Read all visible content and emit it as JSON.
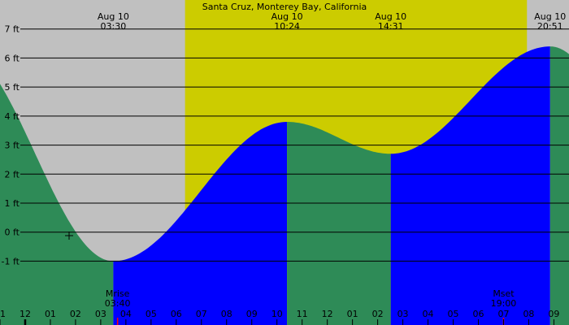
{
  "chart_data": {
    "type": "area",
    "title": "Santa Cruz, Monterey Bay, California",
    "y_unit": "ft",
    "ylim": [
      -3.2,
      8.0
    ],
    "xlim_hours": [
      -1.0,
      21.6
    ],
    "y_ticks": [
      {
        "value": 7,
        "label": "7 ft"
      },
      {
        "value": 6,
        "label": "6 ft"
      },
      {
        "value": 5,
        "label": "5 ft"
      },
      {
        "value": 4,
        "label": "4 ft"
      },
      {
        "value": 3,
        "label": "3 ft"
      },
      {
        "value": 2,
        "label": "2 ft"
      },
      {
        "value": 1,
        "label": "1 ft"
      },
      {
        "value": 0,
        "label": "0 ft"
      },
      {
        "value": -1,
        "label": "-1 ft"
      }
    ],
    "x_ticks": [
      "11",
      "12",
      "01",
      "02",
      "03",
      "04",
      "05",
      "06",
      "07",
      "08",
      "09",
      "10",
      "11",
      "12",
      "01",
      "02",
      "03",
      "04",
      "05",
      "06",
      "07",
      "08",
      "09"
    ],
    "extremes": [
      {
        "date": "Aug 10",
        "time": "03:30",
        "hour": 3.5,
        "height": -1.0,
        "type": "low"
      },
      {
        "date": "Aug 10",
        "time": "10:24",
        "hour": 10.4,
        "height": 3.8,
        "type": "high"
      },
      {
        "date": "Aug 10",
        "time": "14:31",
        "hour": 14.52,
        "height": 2.7,
        "type": "low"
      },
      {
        "date": "Aug 10",
        "time": "20:51",
        "hour": 20.85,
        "height": 6.4,
        "type": "high"
      }
    ],
    "series": [
      {
        "name": "Falling tide",
        "color": "#2e8b57"
      },
      {
        "name": "Rising tide",
        "color": "#0000ff"
      }
    ],
    "daylight": {
      "start_hour": 6.35,
      "end_hour": 19.93,
      "color": "#cccc00"
    },
    "moon_events": [
      {
        "label": "Mrise",
        "time": "03:40",
        "hour": 3.67
      },
      {
        "label": "Mset",
        "time": "19:00",
        "hour": 19.0
      }
    ],
    "night_color": "#c0c0c0",
    "grid": true
  }
}
